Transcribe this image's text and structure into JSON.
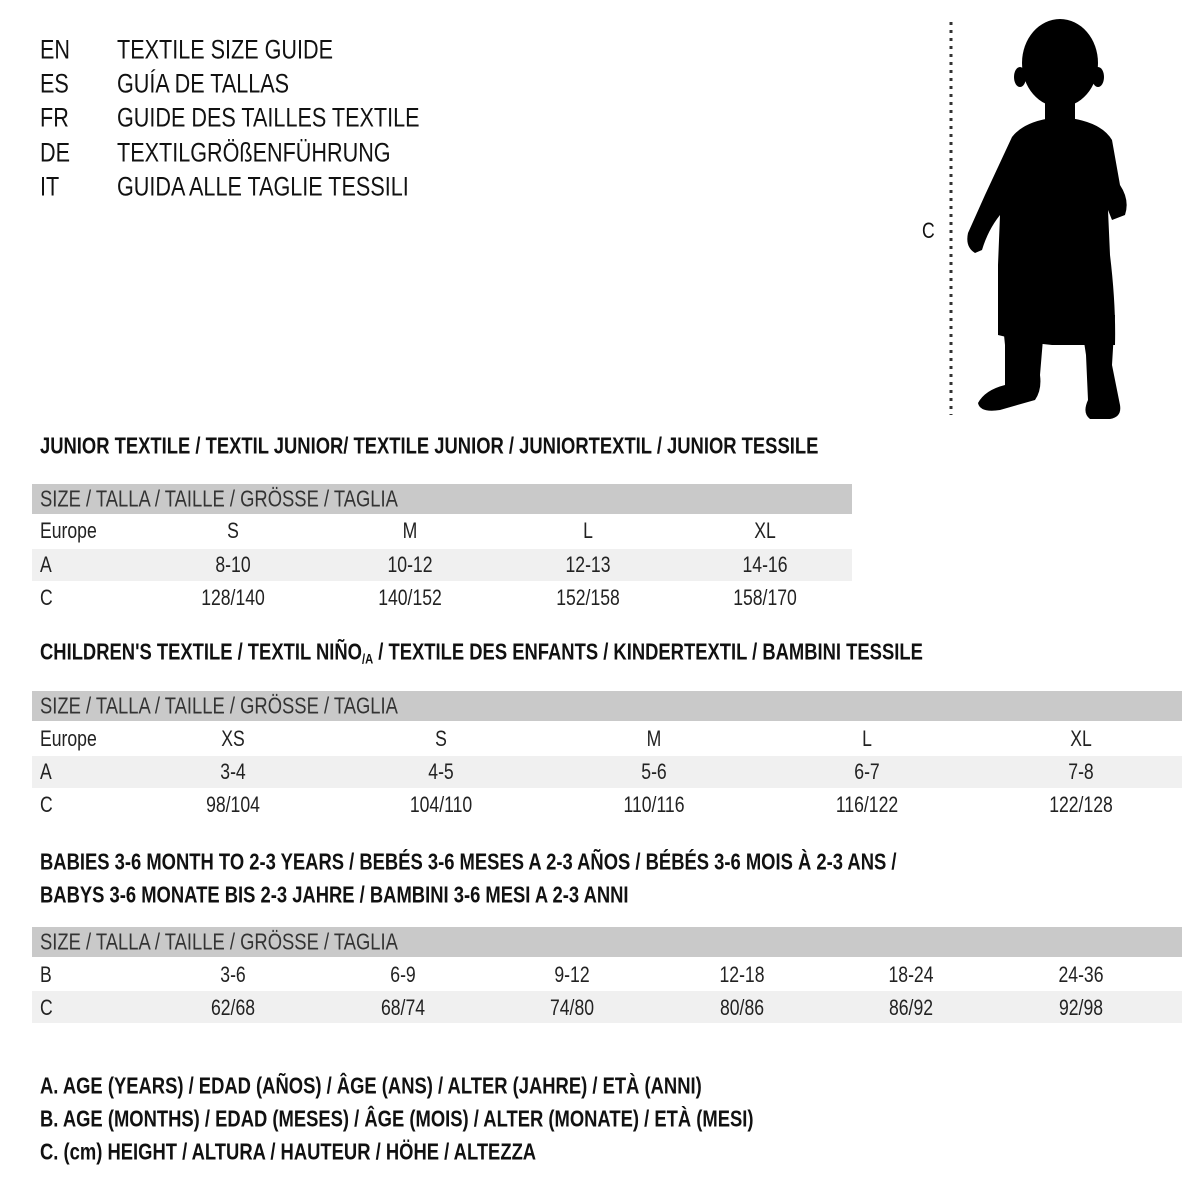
{
  "titles": [
    {
      "code": "EN",
      "text": "TEXTILE SIZE GUIDE"
    },
    {
      "code": "ES",
      "text": "GUÍA DE TALLAS"
    },
    {
      "code": "FR",
      "text": "GUIDE DES TAILLES TEXTILE"
    },
    {
      "code": "DE",
      "text": "TEXTILGRÖßENFÜHRUNG"
    },
    {
      "code": "IT",
      "text": "GUIDA ALLE TAGLIE TESSILI"
    }
  ],
  "figure": {
    "label": "C",
    "icon": "child-silhouette-icon"
  },
  "size_header": "SIZE / TALLA / TAILLE / GRÖSSE / TAGLIA",
  "junior": {
    "heading": "JUNIOR TEXTILE / TEXTIL JUNIOR/ TEXTILE JUNIOR / JUNIORTEXTIL / JUNIOR TESSILE",
    "rows": [
      {
        "label": "Europe",
        "values": [
          "S",
          "M",
          "L",
          "XL"
        ]
      },
      {
        "label": "A",
        "values": [
          "8-10",
          "10-12",
          "12-13",
          "14-16"
        ]
      },
      {
        "label": "C",
        "values": [
          "128/140",
          "140/152",
          "152/158",
          "158/170"
        ]
      }
    ]
  },
  "children": {
    "heading_a": "CHILDREN'S TEXTILE / TEXTIL NIÑO",
    "heading_sub": "/A",
    "heading_b": " / TEXTILE DES ENFANTS / KINDERTEXTIL / BAMBINI TESSILE",
    "rows": [
      {
        "label": "Europe",
        "values": [
          "XS",
          "S",
          "M",
          "L",
          "XL"
        ]
      },
      {
        "label": "A",
        "values": [
          "3-4",
          "4-5",
          "5-6",
          "6-7",
          "7-8"
        ]
      },
      {
        "label": "C",
        "values": [
          "98/104",
          "104/110",
          "110/116",
          "116/122",
          "122/128"
        ]
      }
    ]
  },
  "babies": {
    "heading_1": "BABIES 3-6 MONTH TO 2-3 YEARS / BEBÉS 3-6 MESES A 2-3 AÑOS / BÉBÉS 3-6 MOIS À 2-3 ANS /",
    "heading_2": "BABYS 3-6 MONATE BIS 2-3 JAHRE / BAMBINI 3-6 MESI A 2-3 ANNI",
    "rows": [
      {
        "label": "B",
        "values": [
          "3-6",
          "6-9",
          "9-12",
          "12-18",
          "18-24",
          "24-36"
        ]
      },
      {
        "label": "C",
        "values": [
          "62/68",
          "68/74",
          "74/80",
          "80/86",
          "86/92",
          "92/98"
        ]
      }
    ]
  },
  "legend": [
    "A. AGE (YEARS) / EDAD (AÑOS) / ÂGE (ANS) / ALTER (JAHRE) / ETÀ (ANNI)",
    "B. AGE (MONTHS) / EDAD (MESES) / ÂGE (MOIS) / ALTER (MONATE) / ETÀ (MESI)",
    "C. (cm) HEIGHT / ALTURA / HAUTEUR / HÖHE / ALTEZZA"
  ],
  "colors": {
    "header_band": "#c9c9c9",
    "row_shade": "#f0f0f0",
    "text": "#111111"
  }
}
